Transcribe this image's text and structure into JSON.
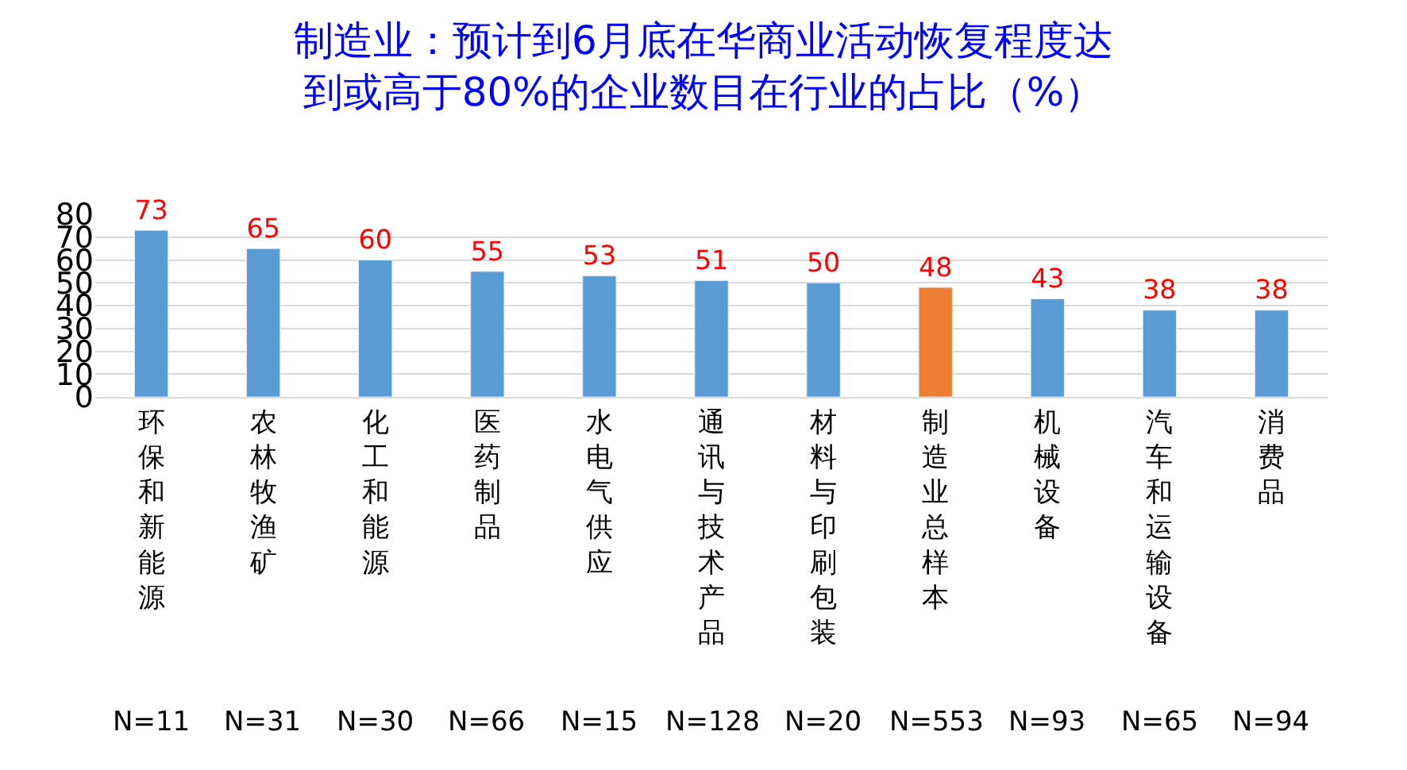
{
  "chart_data": {
    "type": "bar",
    "title": "制造业：预计到6月底在华商业活动恢复程度达到或高于80%的企业数目在行业的占比（%）",
    "categories": [
      "环保和新能源",
      "农林牧渔矿",
      "化工和能源",
      "医药制品",
      "水电气供应",
      "通讯与技术产品",
      "材料与印刷包装",
      "制造业总样本",
      "机械设备",
      "汽车和运输设备",
      "消费品"
    ],
    "values": [
      73,
      65,
      60,
      55,
      53,
      51,
      50,
      48,
      43,
      38,
      38
    ],
    "colors": [
      "#5b9bd5",
      "#5b9bd5",
      "#5b9bd5",
      "#5b9bd5",
      "#5b9bd5",
      "#5b9bd5",
      "#5b9bd5",
      "#ed7d31",
      "#5b9bd5",
      "#5b9bd5",
      "#5b9bd5"
    ],
    "annotations": [
      "N=11",
      "N=31",
      "N=30",
      "N=66",
      "N=15",
      "N=128",
      "N=20",
      "N=553",
      "N=93",
      "N=65",
      "N=94"
    ],
    "ylim": [
      0,
      80
    ],
    "yticks": [
      0,
      10,
      20,
      30,
      40,
      50,
      60,
      70,
      80
    ],
    "grid": "y",
    "data_labels": true,
    "legend": false
  }
}
